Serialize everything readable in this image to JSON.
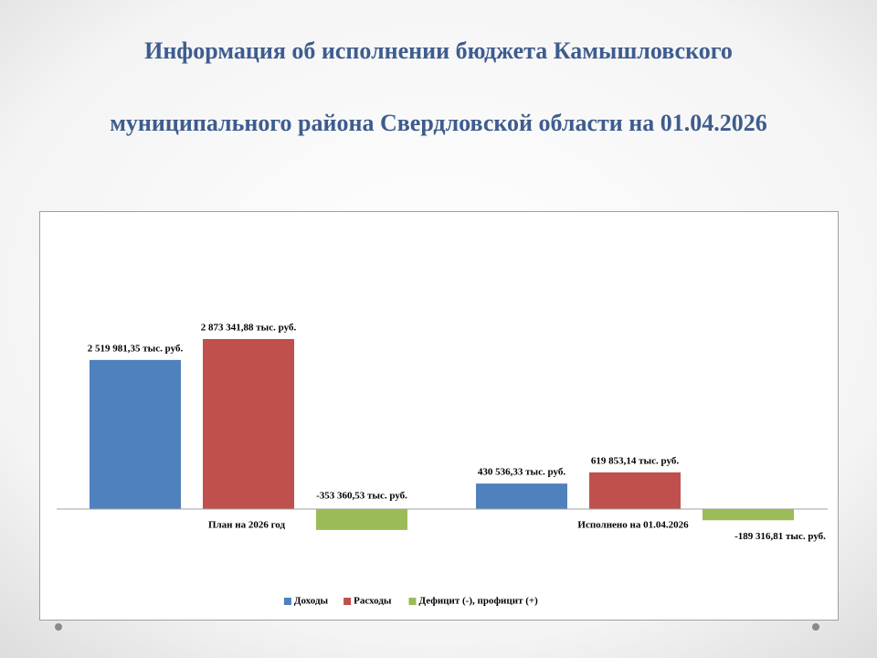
{
  "chart_data": {
    "type": "bar",
    "title_lines": [
      "Информация об исполнении бюджета Камышловского",
      "муниципального района Свердловской области  на 01.04.2026"
    ],
    "categories": [
      "План  на 2026 год",
      "Исполнено  на  01.04.2026"
    ],
    "series": [
      {
        "name": "Доходы",
        "color": "#4f81bd",
        "values": [
          2519981.35,
          430536.33
        ],
        "value_labels": [
          "2 519 981,35 тыс.  руб.",
          "430 536,33 тыс.  руб."
        ]
      },
      {
        "name": "Расходы",
        "color": "#c0504d",
        "values": [
          2873341.88,
          619853.14
        ],
        "value_labels": [
          "2 873 341,88 тыс.  руб.",
          "619 853,14 тыс.  руб."
        ]
      },
      {
        "name": "Дефицит  (-),  профицит  (+)",
        "color": "#9bbb59",
        "values": [
          -353360.53,
          -189316.81
        ],
        "value_labels": [
          "-353 360,53 тыс.  руб.",
          "-189 316,81 тыс.  руб."
        ]
      }
    ],
    "legend": "bottom"
  }
}
